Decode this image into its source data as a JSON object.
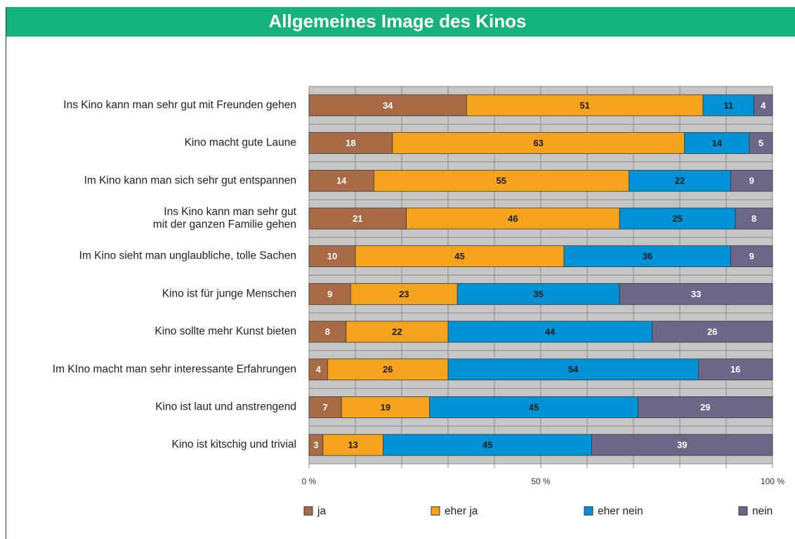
{
  "chart_data": {
    "type": "stacked_barh",
    "title": "Allgemeines Image des Kinos",
    "categories": [
      "Ins Kino kann man sehr gut mit Freunden gehen",
      "Kino macht gute Laune",
      "Im Kino kann man sich sehr gut entspannen",
      "Ins Kino kann man sehr gut\nmit der ganzen Familie gehen",
      "Im Kino sieht man unglaubliche, tolle Sachen",
      "Kino ist für junge Menschen",
      "Kino sollte mehr Kunst bieten",
      "Im KIno macht man sehr interessante Erfahrungen",
      "Kino ist laut und anstrengend",
      "Kino ist kitschig und trivial"
    ],
    "series": [
      {
        "name": "ja",
        "color": "#a86b45",
        "label_color": "#ffffff",
        "values": [
          34,
          18,
          14,
          21,
          10,
          9,
          8,
          4,
          7,
          3
        ]
      },
      {
        "name": "eher ja",
        "color": "#f5a31c",
        "label_color": "#1a1a1a",
        "values": [
          51,
          63,
          55,
          46,
          45,
          23,
          22,
          26,
          19,
          13
        ]
      },
      {
        "name": "eher nein",
        "color": "#0092d6",
        "label_color": "#1a1a1a",
        "values": [
          11,
          14,
          22,
          25,
          36,
          35,
          44,
          54,
          45,
          45
        ]
      },
      {
        "name": "nein",
        "color": "#6a6789",
        "label_color": "#ffffff",
        "values": [
          4,
          5,
          9,
          8,
          9,
          33,
          26,
          16,
          29,
          39
        ]
      }
    ],
    "xlim": [
      0,
      100
    ],
    "xticks": [
      {
        "value": 0,
        "label": "0 %"
      },
      {
        "value": 50,
        "label": "50 %"
      },
      {
        "value": 100,
        "label": "100 %"
      }
    ],
    "xminorticks": [
      0,
      10,
      20,
      30,
      40,
      50,
      60,
      70,
      80,
      90,
      100
    ],
    "grid": true,
    "legend": "bottom"
  }
}
